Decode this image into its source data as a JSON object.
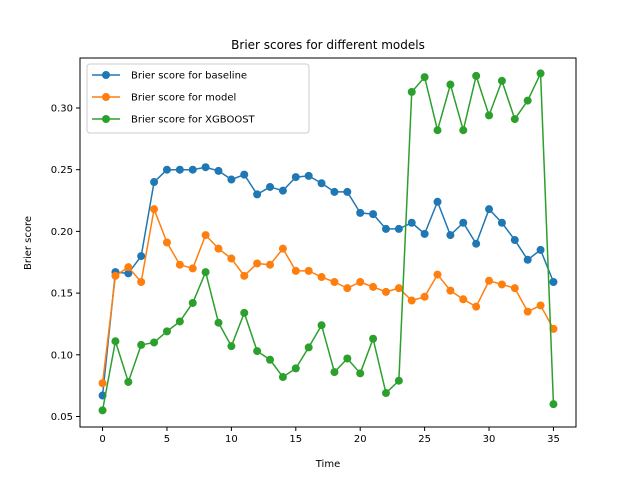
{
  "chart_data": {
    "type": "line",
    "title": "Brier scores for different models",
    "xlabel": "Time",
    "ylabel": "Brier score",
    "xlim": [
      -1.75,
      36.75
    ],
    "ylim": [
      0.0415,
      0.3405
    ],
    "xticks": [
      0,
      5,
      10,
      15,
      20,
      25,
      30,
      35
    ],
    "yticks": [
      0.05,
      0.1,
      0.15,
      0.2,
      0.25,
      0.3
    ],
    "ytick_labels": [
      "0.05",
      "0.10",
      "0.15",
      "0.20",
      "0.25",
      "0.30"
    ],
    "legend_position": "top-left",
    "grid": false,
    "x": [
      0,
      1,
      2,
      3,
      4,
      5,
      6,
      7,
      8,
      9,
      10,
      11,
      12,
      13,
      14,
      15,
      16,
      17,
      18,
      19,
      20,
      21,
      22,
      23,
      24,
      25,
      26,
      27,
      28,
      29,
      30,
      31,
      32,
      33,
      34,
      35
    ],
    "series": [
      {
        "name": "Brier score for baseline",
        "color": "#1f77b4",
        "values": [
          0.067,
          0.167,
          0.166,
          0.18,
          0.24,
          0.25,
          0.25,
          0.25,
          0.252,
          0.249,
          0.242,
          0.246,
          0.23,
          0.236,
          0.233,
          0.244,
          0.245,
          0.239,
          0.232,
          0.232,
          0.215,
          0.214,
          0.202,
          0.202,
          0.207,
          0.198,
          0.224,
          0.197,
          0.207,
          0.19,
          0.218,
          0.207,
          0.193,
          0.177,
          0.185,
          0.159
        ]
      },
      {
        "name": "Brier score for model",
        "color": "#ff7f0e",
        "values": [
          0.077,
          0.164,
          0.171,
          0.159,
          0.218,
          0.191,
          0.173,
          0.17,
          0.197,
          0.186,
          0.178,
          0.164,
          0.174,
          0.173,
          0.186,
          0.168,
          0.168,
          0.163,
          0.159,
          0.154,
          0.159,
          0.155,
          0.151,
          0.154,
          0.144,
          0.147,
          0.165,
          0.152,
          0.145,
          0.139,
          0.16,
          0.157,
          0.154,
          0.135,
          0.14,
          0.121
        ]
      },
      {
        "name": "Brier score for XGBOOST",
        "color": "#2ca02c",
        "values": [
          0.055,
          0.111,
          0.078,
          0.108,
          0.11,
          0.119,
          0.127,
          0.142,
          0.167,
          0.126,
          0.107,
          0.134,
          0.103,
          0.096,
          0.082,
          0.089,
          0.106,
          0.124,
          0.086,
          0.097,
          0.085,
          0.113,
          0.069,
          0.079,
          0.313,
          0.325,
          0.282,
          0.319,
          0.282,
          0.326,
          0.294,
          0.322,
          0.291,
          0.306,
          0.328,
          0.06
        ]
      }
    ]
  }
}
